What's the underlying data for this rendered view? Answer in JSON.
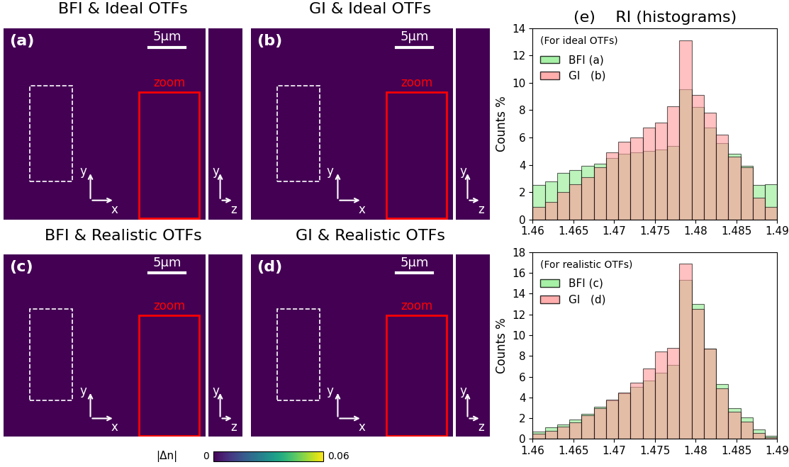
{
  "panels": [
    {
      "title": "BFI & Ideal OTFs",
      "label": "(a)"
    },
    {
      "title": "GI & Ideal OTFs",
      "label": "(b)"
    },
    {
      "title": "BFI & Realistic OTFs",
      "label": "(c)"
    },
    {
      "title": "GI & Realistic OTFs",
      "label": "(d)"
    }
  ],
  "scale_bar": "5μm",
  "zoom": "zoom",
  "xy_axes": [
    "x",
    "y"
  ],
  "yz_axes": [
    "z",
    "y"
  ],
  "colorbar": {
    "label": "|Δn|",
    "range": [
      0,
      0.06
    ],
    "ticks": [
      0,
      0.06
    ]
  },
  "chart_data": [
    {
      "type": "histogram",
      "title": "(e)    RI (histograms)",
      "note": "(For ideal OTFs)",
      "y_label": "Counts %",
      "bins": [
        1.46,
        1.4615,
        1.463,
        1.4645,
        1.466,
        1.4675,
        1.469,
        1.4705,
        1.472,
        1.4735,
        1.475,
        1.4765,
        1.478,
        1.4795,
        1.481,
        1.4825,
        1.484,
        1.4855,
        1.487,
        1.4885,
        1.49
      ],
      "series": [
        {
          "name": "BFI (a)",
          "color": "#90ee90",
          "values": [
            2.5,
            2.8,
            3.4,
            3.6,
            3.9,
            4.1,
            4.5,
            4.8,
            4.9,
            5.0,
            5.1,
            5.4,
            9.5,
            8.2,
            6.7,
            5.6,
            4.8,
            3.9,
            2.5,
            2.6
          ]
        },
        {
          "name": "GI   (b)",
          "color": "#ff9999",
          "values": [
            0.9,
            1.3,
            2.0,
            2.6,
            3.1,
            3.8,
            4.9,
            5.7,
            6.0,
            6.7,
            7.1,
            8.3,
            13.1,
            9.1,
            7.8,
            6.2,
            4.6,
            3.8,
            1.6,
            0.9
          ]
        }
      ],
      "xlim": [
        1.46,
        1.49
      ],
      "xticks": [
        1.46,
        1.465,
        1.47,
        1.475,
        1.48,
        1.485,
        1.49
      ],
      "ylim": [
        0,
        14
      ],
      "yticks": [
        0,
        2,
        4,
        6,
        8,
        10,
        12,
        14
      ],
      "legend": "upper left"
    },
    {
      "type": "histogram",
      "note": "(For realistic OTFs)",
      "y_label": "Counts %",
      "bins": [
        1.46,
        1.4615,
        1.463,
        1.4645,
        1.466,
        1.4675,
        1.469,
        1.4705,
        1.472,
        1.4735,
        1.475,
        1.4765,
        1.478,
        1.4795,
        1.481,
        1.4825,
        1.484,
        1.4855,
        1.487,
        1.4885,
        1.49
      ],
      "series": [
        {
          "name": "BFI (c)",
          "color": "#90ee90",
          "values": [
            0.7,
            1.1,
            1.4,
            1.9,
            2.4,
            3.1,
            3.7,
            4.4,
            5.0,
            5.6,
            6.4,
            7.1,
            15.3,
            13.0,
            8.7,
            5.3,
            3.0,
            2.1,
            0.9,
            0.3
          ]
        },
        {
          "name": "GI   (d)",
          "color": "#ff9999",
          "values": [
            0.5,
            0.8,
            1.2,
            1.6,
            2.3,
            3.0,
            3.8,
            4.5,
            5.4,
            6.8,
            8.4,
            8.8,
            16.9,
            12.5,
            8.7,
            4.9,
            2.6,
            1.7,
            0.6,
            0.2
          ]
        }
      ],
      "xlim": [
        1.46,
        1.49
      ],
      "xticks": [
        1.46,
        1.465,
        1.47,
        1.475,
        1.48,
        1.485,
        1.49
      ],
      "ylim": [
        0,
        18
      ],
      "yticks": [
        0,
        2,
        4,
        6,
        8,
        10,
        12,
        14,
        16,
        18
      ],
      "legend": "upper left"
    }
  ]
}
